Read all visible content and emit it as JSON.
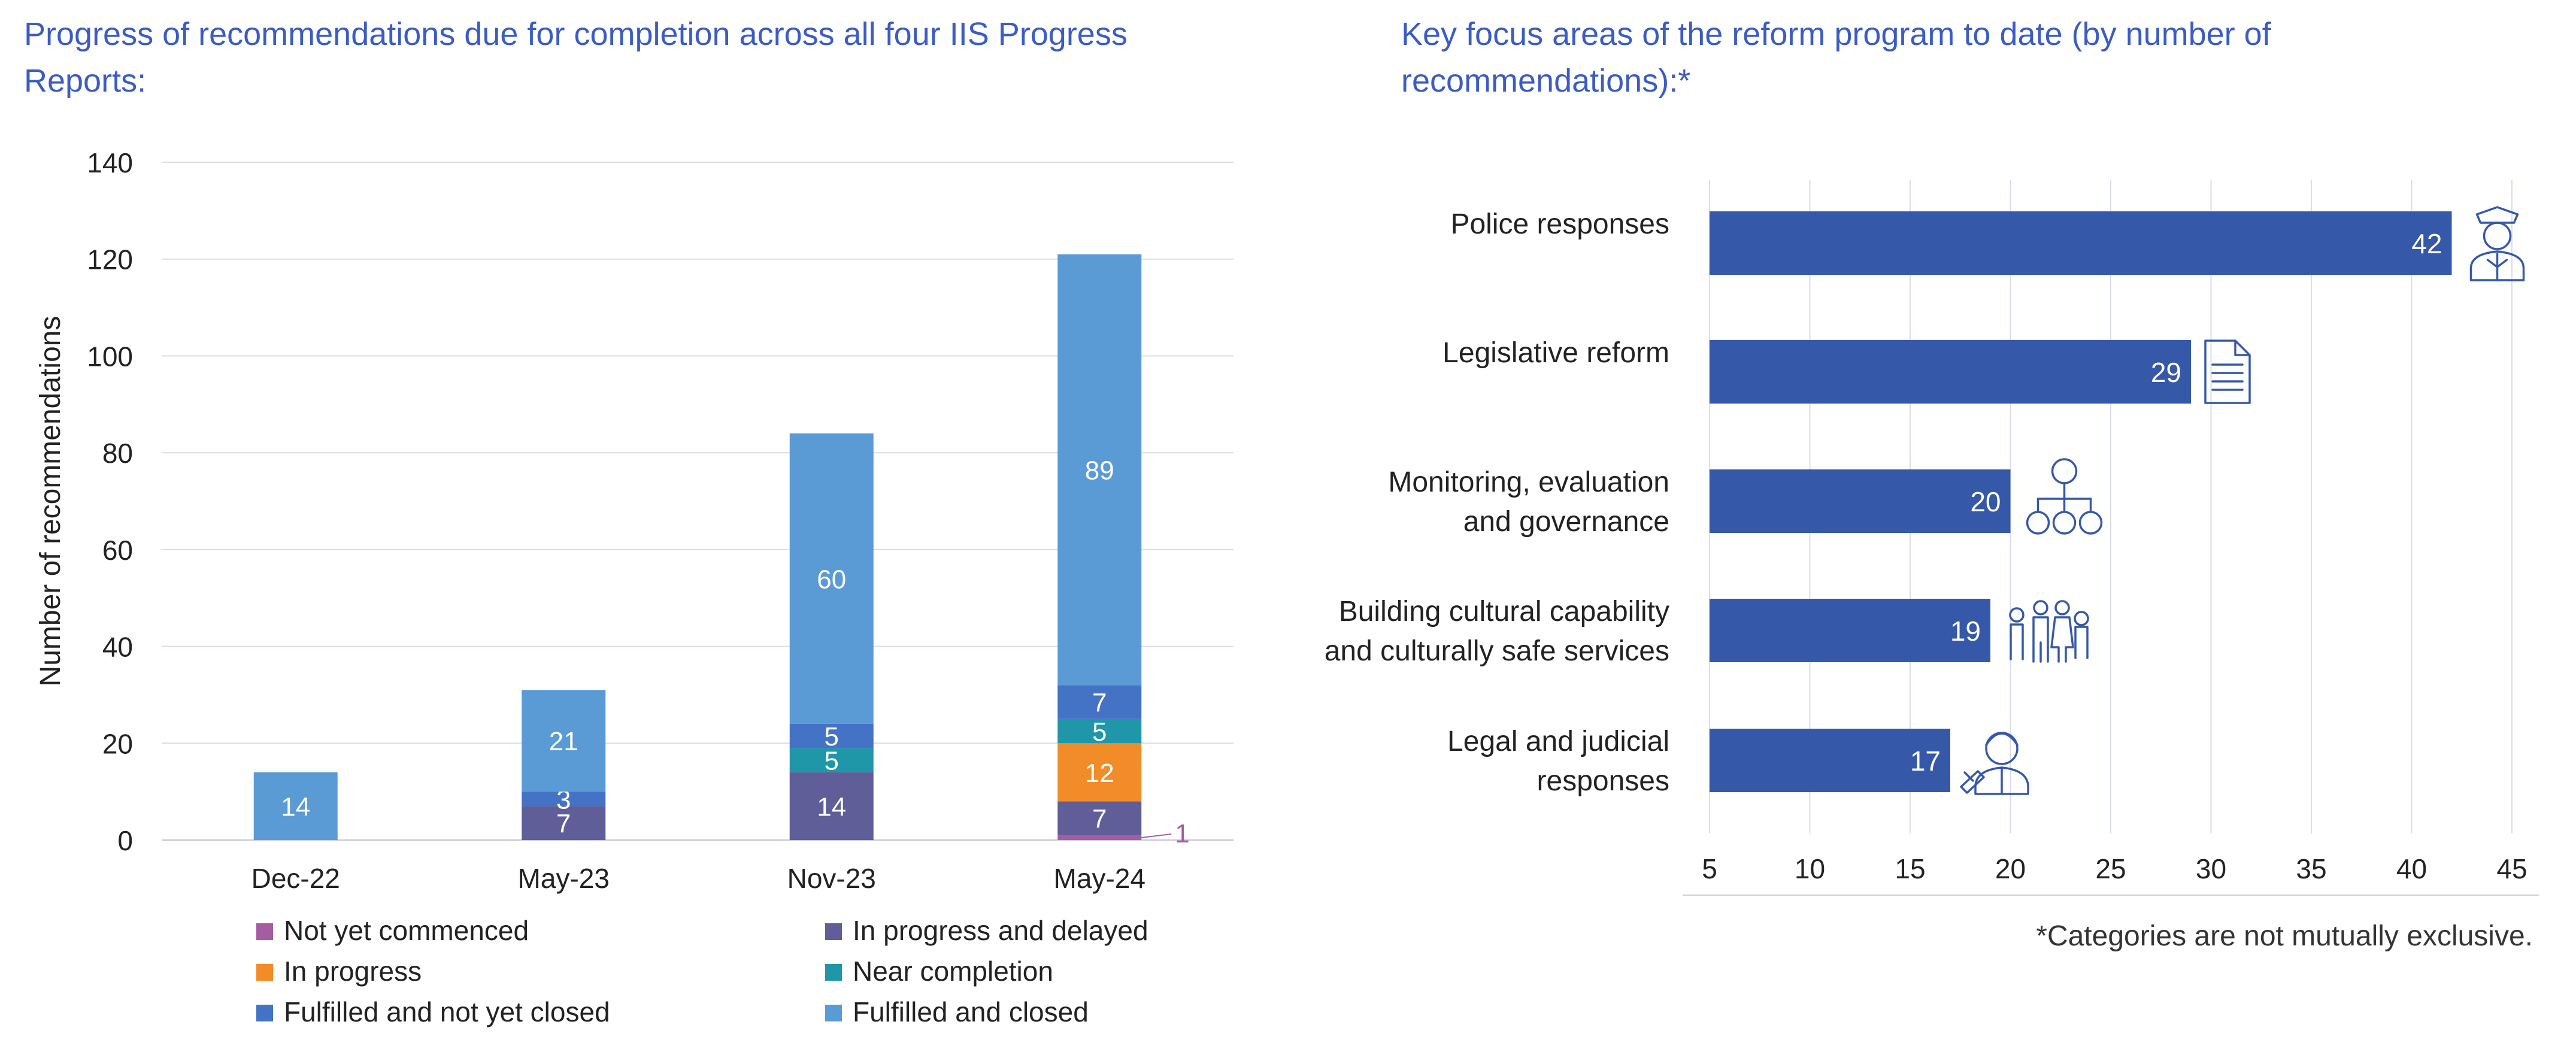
{
  "left_chart": {
    "title": "Progress of recommendations due for completion across all four IIS Progress Reports:"
  },
  "right_chart": {
    "title": "Key focus areas of the reform program to date (by number of recommendations):*",
    "footnote": "*Categories are not mutually exclusive."
  },
  "colors": {
    "title": "#3b5cc4",
    "bar_right": "#3558a8",
    "gridline": "#d9dcea"
  },
  "chart_data": [
    {
      "type": "bar",
      "stacked": true,
      "orientation": "vertical",
      "title": "Progress of recommendations due for completion across all four IIS Progress Reports:",
      "xlabel": "",
      "ylabel": "Number of recommendations",
      "ylim": [
        0,
        140
      ],
      "yticks": [
        0,
        20,
        40,
        60,
        80,
        100,
        120,
        140
      ],
      "grid": true,
      "legend": "bottom",
      "categories": [
        "Dec-22",
        "May-23",
        "Nov-23",
        "May-24"
      ],
      "series": [
        {
          "name": "Not yet commenced",
          "color": "#a55ca0",
          "values": [
            0,
            0,
            0,
            1
          ]
        },
        {
          "name": "In progress and delayed",
          "color": "#5f5e99",
          "values": [
            0,
            7,
            14,
            7
          ]
        },
        {
          "name": "In progress",
          "color": "#f28c28",
          "values": [
            0,
            0,
            0,
            12
          ]
        },
        {
          "name": "Near completion",
          "color": "#1f97a8",
          "values": [
            0,
            0,
            5,
            5
          ]
        },
        {
          "name": "Fulfilled and not yet closed",
          "color": "#4472c4",
          "values": [
            0,
            3,
            5,
            7
          ]
        },
        {
          "name": "Fulfilled and closed",
          "color": "#5b9bd5",
          "values": [
            14,
            21,
            60,
            89
          ]
        }
      ]
    },
    {
      "type": "bar",
      "orientation": "horizontal",
      "title": "Key focus areas of the reform program to date (by number of recommendations):*",
      "xlim": [
        5,
        45
      ],
      "xticks": [
        5,
        10,
        15,
        20,
        25,
        30,
        35,
        40,
        45
      ],
      "grid": true,
      "categories": [
        {
          "line1": "Police responses",
          "line2": "",
          "icon": "police-officer-icon"
        },
        {
          "line1": "Legislative reform",
          "line2": "",
          "icon": "document-icon"
        },
        {
          "line1": "Monitoring, evaluation",
          "line2": "and governance",
          "icon": "org-chart-icon"
        },
        {
          "line1": "Building cultural capability",
          "line2": "and culturally safe services",
          "icon": "family-icon"
        },
        {
          "line1": "Legal and judicial",
          "line2": "responses",
          "icon": "judge-icon"
        }
      ],
      "values": [
        42,
        29,
        20,
        19,
        17
      ]
    }
  ]
}
